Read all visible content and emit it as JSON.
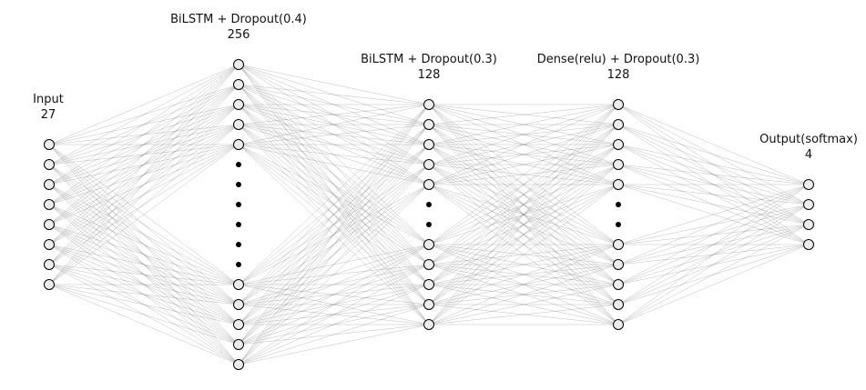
{
  "layers": [
    {
      "name": "Input",
      "units": "27"
    },
    {
      "name": "BiLSTM + Dropout(0.4)",
      "units": "256"
    },
    {
      "name": "BiLSTM + Dropout(0.3)",
      "units": "128"
    },
    {
      "name": "Dense(relu) + Dropout(0.3)",
      "units": "128"
    },
    {
      "name": "Output(softmax)",
      "units": "4"
    }
  ]
}
